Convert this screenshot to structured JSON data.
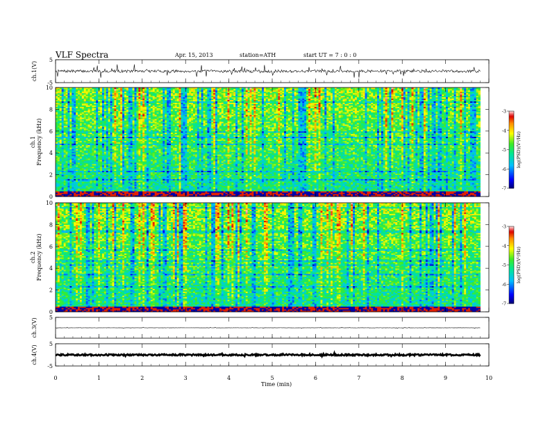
{
  "header": {
    "title": "VLF  Spectra",
    "date": "Apr. 15, 2013",
    "station": "station=ATH",
    "start": "start  UT  =    7  : 0  : 0"
  },
  "chart_data": [
    {
      "type": "line",
      "name": "ch1-waveform",
      "ylabel": "ch.1(V)",
      "ylim": [
        -5,
        5
      ],
      "yticks": [
        5,
        -5
      ],
      "xlim": [
        0,
        10
      ],
      "baseline": 0.0,
      "noise_amplitude": 0.6,
      "spike_amplitude": 2.5
    },
    {
      "type": "heatmap",
      "name": "ch1-spectrogram",
      "ylabel_lines": [
        "ch.1",
        "Frequency  (kHz)"
      ],
      "ylim": [
        0,
        10
      ],
      "yticks": [
        0,
        2,
        4,
        6,
        8,
        10
      ],
      "xlim": [
        0,
        9.8
      ],
      "colorbar": {
        "label": "log(PSD)(V²/Hz)",
        "range": [
          -7,
          -3
        ],
        "ticks": [
          -3,
          -4,
          -5,
          -6,
          -7
        ]
      },
      "seed": 11
    },
    {
      "type": "heatmap",
      "name": "ch2-spectrogram",
      "ylabel_lines": [
        "ch.2",
        "Frequency  (kHz)"
      ],
      "ylim": [
        0,
        10
      ],
      "yticks": [
        0,
        2,
        4,
        6,
        8,
        10
      ],
      "xlim": [
        0,
        9.8
      ],
      "colorbar": {
        "label": "log(PSD)(V²/Hz)",
        "range": [
          -7,
          -3
        ],
        "ticks": [
          -3,
          -4,
          -5,
          -6,
          -7
        ]
      },
      "seed": 29
    },
    {
      "type": "line",
      "name": "ch3-waveform",
      "ylabel": "ch.3(V)",
      "ylim": [
        -5,
        5
      ],
      "yticks": [
        5
      ],
      "xlim": [
        0,
        10
      ],
      "baseline": 0.0,
      "noise_amplitude": 0.05,
      "spike_amplitude": 0.3
    },
    {
      "type": "line",
      "name": "ch4-waveform",
      "ylabel": "ch.4(V)",
      "ylim": [
        -5,
        5
      ],
      "yticks": [
        5,
        -5
      ],
      "xlim": [
        0,
        10
      ],
      "baseline": 0.0,
      "noise_amplitude": 0.35,
      "spike_amplitude": 0.5
    }
  ],
  "xaxis": {
    "label": "Time  (min)",
    "ticks": [
      0,
      1,
      2,
      3,
      4,
      5,
      6,
      7,
      8,
      9,
      10
    ],
    "range": [
      0,
      10
    ]
  }
}
